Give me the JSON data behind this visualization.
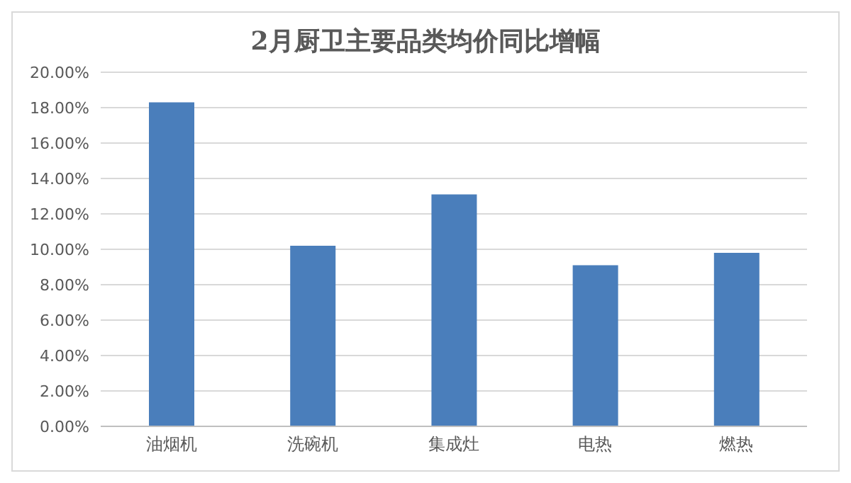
{
  "chart_data": {
    "type": "bar",
    "title": "2月厨卫主要品类均价同比增幅",
    "categories": [
      "油烟机",
      "洗碗机",
      "集成灶",
      "电热",
      "燃热"
    ],
    "values": [
      18.3,
      10.2,
      13.1,
      9.1,
      9.8
    ],
    "color": "#4a7ebb",
    "ylim": [
      0,
      20
    ],
    "yticks": [
      {
        "value": 0,
        "label": "0.00%"
      },
      {
        "value": 2,
        "label": "2.00%"
      },
      {
        "value": 4,
        "label": "4.00%"
      },
      {
        "value": 6,
        "label": "6.00%"
      },
      {
        "value": 8,
        "label": "8.00%"
      },
      {
        "value": 10,
        "label": "10.00%"
      },
      {
        "value": 12,
        "label": "12.00%"
      },
      {
        "value": 14,
        "label": "14.00%"
      },
      {
        "value": 16,
        "label": "16.00%"
      },
      {
        "value": 18,
        "label": "18.00%"
      },
      {
        "value": 20,
        "label": "20.00%"
      }
    ],
    "grid": "y"
  }
}
